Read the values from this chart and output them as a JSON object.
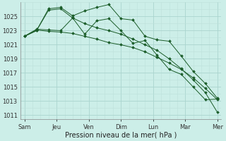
{
  "xlabel": "Pression niveau de la mer( hPa )",
  "background_color": "#cceee8",
  "grid_color_major": "#aad4ce",
  "grid_color_minor": "#bde0da",
  "line_color": "#1a5c28",
  "marker_color": "#1a5c28",
  "ylim": [
    1010.5,
    1027.0
  ],
  "yticks": [
    1011,
    1013,
    1015,
    1017,
    1019,
    1021,
    1023,
    1025
  ],
  "x_labels": [
    "Sam",
    "Jeu",
    "Ven",
    "Dim",
    "Lun",
    "Mar",
    "Mer"
  ],
  "series": [
    [
      1022.2,
      1023.1,
      1022.9,
      1022.8,
      1022.6,
      1022.2,
      1021.8,
      1021.3,
      1021.0,
      1020.6,
      1020.0,
      1019.2,
      1018.4,
      1017.5,
      1016.3,
      1014.8,
      1013.2
    ],
    [
      1022.2,
      1023.0,
      1025.9,
      1026.1,
      1024.8,
      1024.0,
      1023.4,
      1023.0,
      1022.5,
      1021.8,
      1021.0,
      1020.2,
      1019.0,
      1017.6,
      1016.0,
      1014.2,
      1011.4
    ],
    [
      1022.2,
      1023.0,
      1026.1,
      1026.3,
      1025.1,
      1025.8,
      1026.3,
      1026.7,
      1024.7,
      1024.5,
      1022.2,
      1021.7,
      1021.5,
      1019.4,
      1017.2,
      1015.5,
      1013.4
    ],
    [
      1022.2,
      1023.2,
      1023.1,
      1023.0,
      1024.8,
      1022.5,
      1024.4,
      1024.7,
      1023.0,
      1021.2,
      1021.6,
      1019.5,
      1017.5,
      1016.8,
      1015.0,
      1013.2,
      1013.3
    ]
  ],
  "n_points": 17
}
